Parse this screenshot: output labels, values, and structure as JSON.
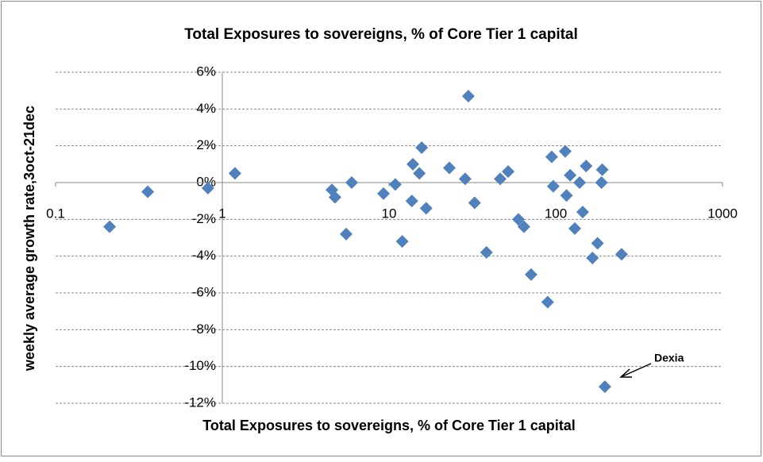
{
  "chart_data": {
    "type": "scatter",
    "title": "Total Exposures to sovereigns, % of Core Tier 1 capital",
    "x_label": "Total Exposures to sovereigns, % of Core Tier 1 capital",
    "y_label": "weekly average growth rate,3oct-21dec",
    "xscale": "log",
    "grid": true,
    "color": "#4f81bd",
    "xlim": [
      0.1,
      1000
    ],
    "xticks": [
      0.1,
      1,
      10,
      100,
      1000
    ],
    "ylim": [
      -12,
      6
    ],
    "yticks": [
      {
        "value": -12,
        "label": "-12%"
      },
      {
        "value": -10,
        "label": "-10%"
      },
      {
        "value": -8,
        "label": "-8%"
      },
      {
        "value": -6,
        "label": "-6%"
      },
      {
        "value": -4,
        "label": "-4%"
      },
      {
        "value": -2,
        "label": "-2%"
      },
      {
        "value": 0,
        "label": "0%"
      },
      {
        "value": 2,
        "label": "2%"
      },
      {
        "value": 4,
        "label": "4%"
      },
      {
        "value": 6,
        "label": "6%"
      }
    ],
    "x": [
      0.211,
      0.357,
      0.82,
      1.19,
      4.54,
      4.74,
      5.53,
      5.97,
      9.26,
      10.9,
      12.0,
      13.9,
      13.7,
      15.2,
      15.7,
      16.7,
      23.0,
      28.6,
      29.9,
      32.6,
      38.4,
      46.4,
      51.8,
      59.7,
      64.4,
      71.1,
      89.4,
      94.5,
      96.6,
      114,
      116,
      122,
      130,
      139,
      145,
      152,
      166,
      178,
      190,
      188,
      197,
      248
    ],
    "values": [
      -2.4,
      -0.5,
      -0.3,
      0.5,
      -0.4,
      -0.8,
      -2.8,
      0.0,
      -0.6,
      -0.1,
      -3.2,
      1.0,
      -1.0,
      0.5,
      1.9,
      -1.4,
      0.8,
      0.2,
      4.7,
      -1.1,
      -3.8,
      0.2,
      0.6,
      -2.0,
      -2.4,
      -5.0,
      -6.5,
      1.4,
      -0.2,
      1.7,
      -0.7,
      0.4,
      -2.5,
      0.0,
      -1.6,
      0.9,
      -4.1,
      -3.3,
      0.7,
      0.0,
      -11.1,
      -3.9
    ],
    "annotation": "Dexia"
  }
}
